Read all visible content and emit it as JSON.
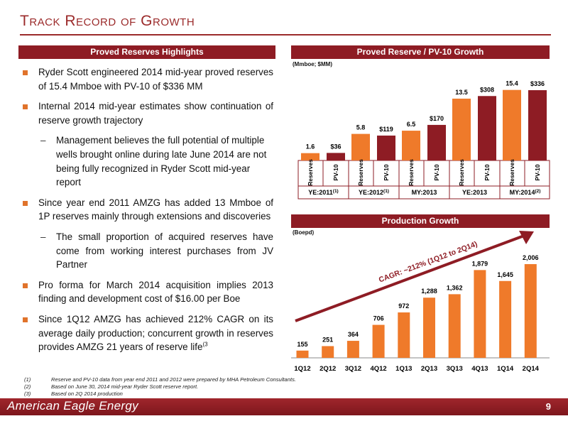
{
  "title": "Track Record of Growth",
  "left": {
    "header": "Proved Reserves Highlights",
    "bullets": [
      {
        "text": "Ryder Scott engineered 2014 mid-year proved reserves of 15.4 Mmboe with PV-10 of $336 MM"
      },
      {
        "text": "Internal 2014 mid-year estimates show continuation of reserve growth trajectory"
      },
      {
        "text": "Management believes the full potential of multiple wells brought online during late June 2014 are not being fully recognized in Ryder Scott mid-year report",
        "sub": true
      },
      {
        "text": "Since year end 2011 AMZG has added 13 Mmboe of 1P reserves mainly through extensions and discoveries"
      },
      {
        "text": "The small proportion of acquired reserves have come from working interest purchases from JV Partner",
        "sub": true
      },
      {
        "text": "Pro forma for March 2014 acquisition implies 2013 finding and development cost of $16.00 per Boe"
      },
      {
        "text": "Since 1Q12 AMZG has achieved 212% CAGR on its average daily production; concurrent growth in reserves provides AMZG 21 years of reserve life",
        "sup": "(3"
      }
    ]
  },
  "reserves_header": "Proved Reserve / PV-10 Growth",
  "production_header": "Production Growth",
  "chart_data": [
    {
      "type": "bar",
      "unit_label": "(Mmboe; $MM)",
      "categories": [
        "YE:2011",
        "YE:2012",
        "MY:2013",
        "YE:2013",
        "MY:2014"
      ],
      "category_sups": [
        "(1)",
        "(1)",
        "",
        "",
        "(2)"
      ],
      "bar_labels": [
        "Reserves",
        "PV-10"
      ],
      "series": [
        {
          "name": "Reserves",
          "values": [
            1.6,
            5.8,
            6.5,
            13.5,
            15.4
          ],
          "labels": [
            "1.6",
            "5.8",
            "6.5",
            "13.5",
            "15.4"
          ],
          "color": "#ef7a2a"
        },
        {
          "name": "PV-10",
          "values": [
            36,
            119,
            170,
            308,
            336
          ],
          "labels": [
            "$36",
            "$119",
            "$170",
            "$308",
            "$336"
          ],
          "color": "#8e1c24"
        }
      ]
    },
    {
      "type": "bar",
      "unit_label": "(Boepd)",
      "categories": [
        "1Q12",
        "2Q12",
        "3Q12",
        "4Q12",
        "1Q13",
        "2Q13",
        "3Q13",
        "4Q13",
        "1Q14",
        "2Q14"
      ],
      "values": [
        155,
        251,
        364,
        706,
        972,
        1288,
        1362,
        1879,
        1645,
        2006
      ],
      "labels": [
        "155",
        "251",
        "364",
        "706",
        "972",
        "1,288",
        "1,362",
        "1,879",
        "1,645",
        "2,006"
      ],
      "color": "#ef7a2a",
      "annotation": "CAGR: ~212% (1Q12 to 2Q14)"
    }
  ],
  "footnotes": [
    {
      "num": "(1)",
      "text": "Reserve and PV-10 data from year end 2011 and 2012 were prepared by MHA Petroleum Consultants."
    },
    {
      "num": "(2)",
      "text": "Based on June 30, 2014 mid-year Ryder Scott reserve report."
    },
    {
      "num": "(3)",
      "text": "Based on 2Q 2014 production"
    }
  ],
  "footer": {
    "brand": "American Eagle Energy",
    "page": "9"
  },
  "colors": {
    "accent": "#8e1c24",
    "orange": "#ef7a2a",
    "title": "#9b2a2a"
  }
}
